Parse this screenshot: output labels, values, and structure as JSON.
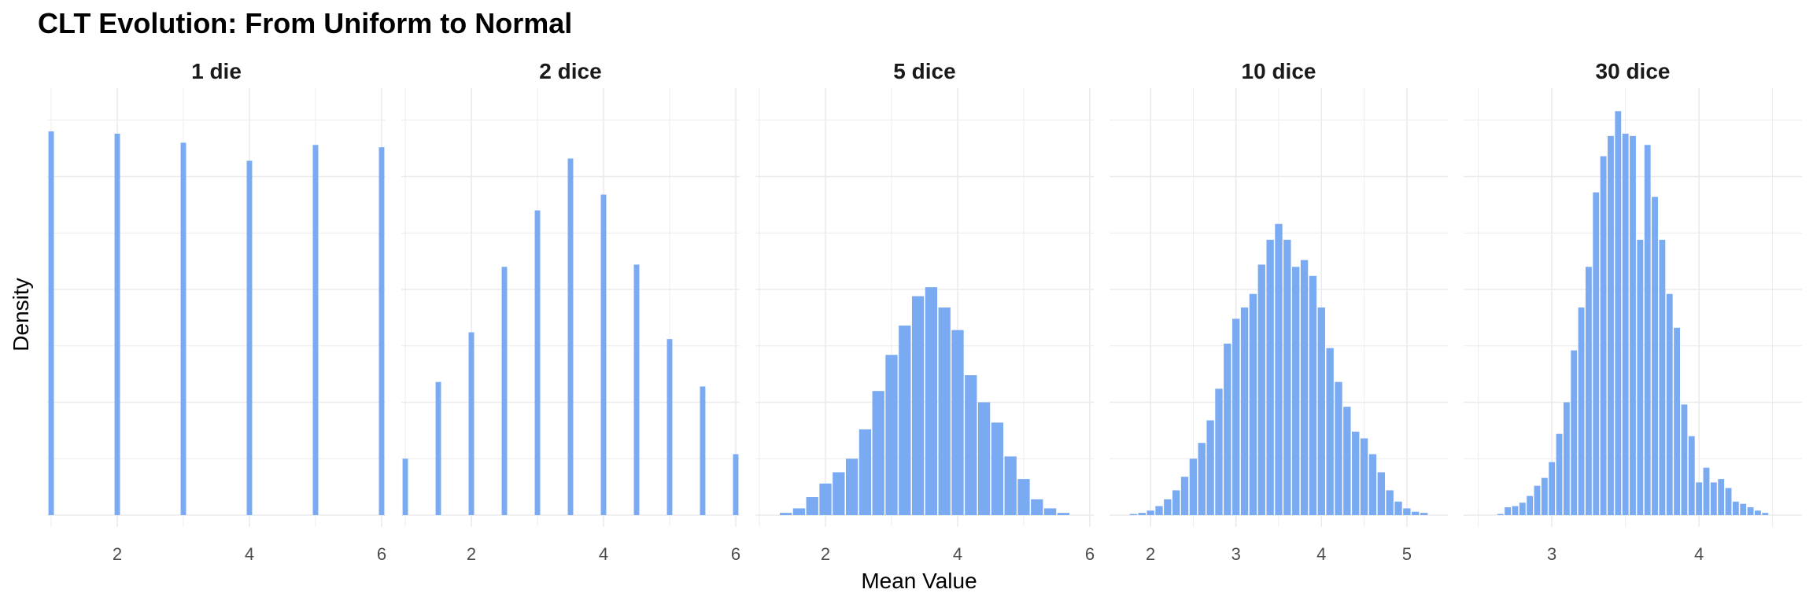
{
  "chart_data": {
    "type": "bar",
    "title": "CLT Evolution: From Uniform to Normal",
    "xlabel": "Mean Value",
    "ylabel": "Density",
    "grid": true,
    "bar_color": "#7AABF2",
    "grid_color": "#EBEBEB",
    "panels": [
      {
        "label": "1 die",
        "xlim": [
          0.94,
          6.06
        ],
        "xticks": [
          2,
          4,
          6
        ],
        "bin_width": 0.1,
        "x": [
          1,
          2,
          3,
          4,
          5,
          6
        ],
        "density": [
          1.7,
          1.69,
          1.65,
          1.57,
          1.64,
          1.63
        ]
      },
      {
        "label": "2 dice",
        "xlim": [
          0.94,
          6.06
        ],
        "xticks": [
          2,
          4,
          6
        ],
        "bin_width": 0.1,
        "x": [
          1,
          1.5,
          2,
          2.5,
          3,
          3.5,
          4,
          4.5,
          5,
          5.5,
          6
        ],
        "density": [
          0.25,
          0.59,
          0.81,
          1.1,
          1.35,
          1.58,
          1.42,
          1.11,
          0.78,
          0.57,
          0.27
        ]
      },
      {
        "label": "5 dice",
        "xlim": [
          0.94,
          6.06
        ],
        "xticks": [
          2,
          4,
          6
        ],
        "bin_width": 0.2,
        "x": [
          1.4,
          1.6,
          1.8,
          2.0,
          2.2,
          2.4,
          2.6,
          2.8,
          3.0,
          3.2,
          3.4,
          3.6,
          3.8,
          4.0,
          4.2,
          4.4,
          4.6,
          4.8,
          5.0,
          5.2,
          5.4,
          5.6
        ],
        "density": [
          0.01,
          0.03,
          0.08,
          0.14,
          0.19,
          0.25,
          0.38,
          0.55,
          0.71,
          0.84,
          0.97,
          1.01,
          0.92,
          0.82,
          0.62,
          0.5,
          0.41,
          0.26,
          0.16,
          0.07,
          0.03,
          0.01
        ]
      },
      {
        "label": "10 dice",
        "xlim": [
          1.52,
          5.48
        ],
        "xticks": [
          2,
          3,
          4,
          5
        ],
        "bin_width": 0.1,
        "x": [
          1.8,
          1.9,
          2.0,
          2.1,
          2.2,
          2.3,
          2.4,
          2.5,
          2.6,
          2.7,
          2.8,
          2.9,
          3.0,
          3.1,
          3.2,
          3.3,
          3.4,
          3.5,
          3.6,
          3.7,
          3.8,
          3.9,
          4.0,
          4.1,
          4.2,
          4.3,
          4.4,
          4.5,
          4.6,
          4.7,
          4.8,
          4.9,
          5.0,
          5.1,
          5.2
        ],
        "density": [
          0.005,
          0.01,
          0.02,
          0.04,
          0.07,
          0.11,
          0.17,
          0.25,
          0.32,
          0.42,
          0.56,
          0.76,
          0.87,
          0.92,
          0.98,
          1.11,
          1.22,
          1.29,
          1.22,
          1.1,
          1.13,
          1.06,
          0.92,
          0.74,
          0.59,
          0.48,
          0.37,
          0.34,
          0.27,
          0.19,
          0.11,
          0.06,
          0.03,
          0.015,
          0.01
        ]
      },
      {
        "label": "30 dice",
        "xlim": [
          2.4,
          4.7
        ],
        "xticks": [
          3,
          4
        ],
        "bin_width": 0.05,
        "x": [
          2.65,
          2.7,
          2.75,
          2.8,
          2.85,
          2.9,
          2.95,
          3.0,
          3.05,
          3.1,
          3.15,
          3.2,
          3.25,
          3.3,
          3.35,
          3.4,
          3.45,
          3.5,
          3.55,
          3.6,
          3.65,
          3.7,
          3.75,
          3.8,
          3.85,
          3.9,
          3.95,
          4.0,
          4.05,
          4.1,
          4.15,
          4.2,
          4.25,
          4.3,
          4.35,
          4.4,
          4.45
        ],
        "density": [
          0.005,
          0.035,
          0.04,
          0.055,
          0.085,
          0.13,
          0.165,
          0.235,
          0.36,
          0.5,
          0.73,
          0.92,
          1.1,
          1.43,
          1.59,
          1.68,
          1.79,
          1.69,
          1.68,
          1.22,
          1.64,
          1.41,
          1.22,
          0.98,
          0.83,
          0.49,
          0.35,
          0.145,
          0.21,
          0.145,
          0.16,
          0.12,
          0.06,
          0.05,
          0.035,
          0.02,
          0.01
        ]
      }
    ]
  }
}
